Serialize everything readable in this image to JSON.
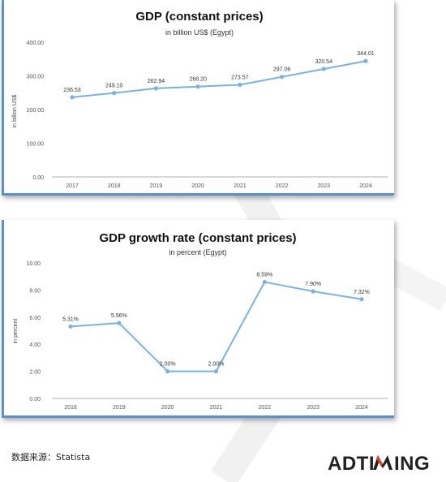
{
  "source_text": "数据来源：Statista",
  "logo_text": "ADTIMING",
  "colors": {
    "line": "#7ab2e2",
    "accent": "#5b8fd0",
    "brand_red": "#e04030",
    "text": "#333333",
    "axis": "#777777"
  },
  "chart_data": [
    {
      "type": "line",
      "title": "GDP (constant prices)",
      "subtitle": "in billion US$ (Egypt)",
      "xlabel": "",
      "ylabel": "in billion US$",
      "categories": [
        "2017",
        "2018",
        "2019",
        "2020",
        "2021",
        "2022",
        "2023",
        "2024"
      ],
      "series": [
        {
          "values": [
            236.53,
            249.1,
            262.94,
            268.2,
            273.57,
            297.06,
            320.54,
            344.01
          ]
        }
      ],
      "data_labels": [
        "236.53",
        "249.10",
        "262.94",
        "268.20",
        "273.57",
        "297.06",
        "320.54",
        "344.01"
      ],
      "yticks": [
        "0.00",
        "100.00",
        "200.00",
        "300.00",
        "400.00"
      ],
      "ylim": [
        0,
        400
      ],
      "grid": false,
      "legend": "none"
    },
    {
      "type": "line",
      "title": "GDP growth rate (constant prices)",
      "subtitle": "in percent (Egypt)",
      "xlabel": "",
      "ylabel": "in percent",
      "categories": [
        "2018",
        "2019",
        "2020",
        "2021",
        "2022",
        "2023",
        "2024"
      ],
      "series": [
        {
          "values": [
            5.31,
            5.56,
            2.0,
            2.0,
            8.59,
            7.9,
            7.32
          ]
        }
      ],
      "data_labels": [
        "5.31%",
        "5.56%",
        "2.00%",
        "2.00%",
        "8.59%",
        "7.90%",
        "7.32%"
      ],
      "yticks": [
        "0.00",
        "2.00",
        "4.00",
        "6.00",
        "8.00",
        "10.00"
      ],
      "ylim": [
        0,
        10
      ],
      "grid": false,
      "legend": "none"
    }
  ]
}
